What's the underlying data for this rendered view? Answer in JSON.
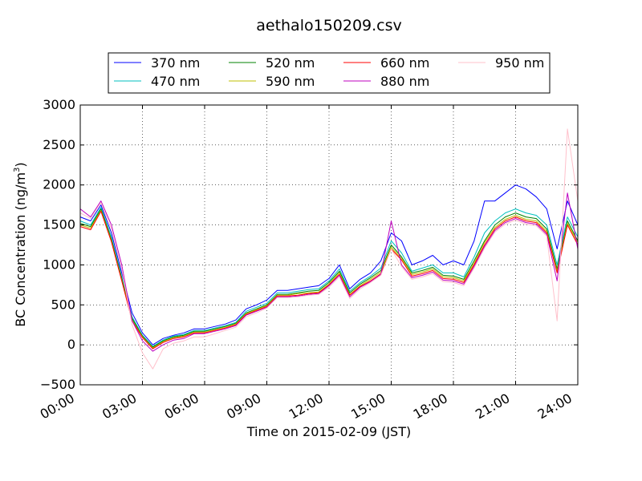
{
  "chart_data": {
    "type": "line",
    "title": "aethalo150209.csv",
    "xlabel": "Time on 2015-02-09 (JST)",
    "ylabel_main": "BC Concentration (ng/m",
    "ylabel_sup": "3",
    "ylabel_close": ")",
    "xlim": [
      0,
      24
    ],
    "ylim": [
      -500,
      3000
    ],
    "grid": true,
    "legend_placement": "top-center",
    "x_ticks": [
      {
        "value": 0,
        "label": "00:00"
      },
      {
        "value": 3,
        "label": "03:00"
      },
      {
        "value": 6,
        "label": "06:00"
      },
      {
        "value": 9,
        "label": "09:00"
      },
      {
        "value": 12,
        "label": "12:00"
      },
      {
        "value": 15,
        "label": "15:00"
      },
      {
        "value": 18,
        "label": "18:00"
      },
      {
        "value": 21,
        "label": "21:00"
      },
      {
        "value": 24,
        "label": "24:00"
      }
    ],
    "y_ticks": [
      {
        "value": -500,
        "label": "−500"
      },
      {
        "value": 0,
        "label": "0"
      },
      {
        "value": 500,
        "label": "500"
      },
      {
        "value": 1000,
        "label": "1000"
      },
      {
        "value": 1500,
        "label": "1500"
      },
      {
        "value": 2000,
        "label": "2000"
      },
      {
        "value": 2500,
        "label": "2500"
      },
      {
        "value": 3000,
        "label": "3000"
      }
    ],
    "x": [
      0,
      0.5,
      1,
      1.5,
      2,
      2.5,
      3,
      3.5,
      4,
      4.5,
      5,
      5.5,
      6,
      6.5,
      7,
      7.5,
      8,
      8.5,
      9,
      9.5,
      10,
      10.5,
      11,
      11.5,
      12,
      12.5,
      13,
      13.5,
      14,
      14.5,
      15,
      15.5,
      16,
      16.5,
      17,
      17.5,
      18,
      18.5,
      19,
      19.5,
      20,
      20.5,
      21,
      21.5,
      22,
      22.5,
      23,
      23.5,
      24
    ],
    "series": [
      {
        "name": "370 nm",
        "color": "#0000ff",
        "values": [
          1600,
          1550,
          1750,
          1400,
          900,
          400,
          150,
          0,
          80,
          120,
          150,
          200,
          200,
          230,
          260,
          310,
          450,
          500,
          560,
          680,
          680,
          700,
          720,
          740,
          830,
          1000,
          700,
          820,
          900,
          1050,
          1400,
          1300,
          1000,
          1050,
          1120,
          1000,
          1050,
          1000,
          1300,
          1800,
          1800,
          1900,
          2000,
          1950,
          1850,
          1700,
          1200,
          1800,
          1500
        ]
      },
      {
        "name": "470 nm",
        "color": "#00bfbf",
        "values": [
          1550,
          1500,
          1720,
          1350,
          850,
          350,
          120,
          -20,
          60,
          110,
          130,
          180,
          180,
          210,
          240,
          280,
          420,
          470,
          520,
          650,
          650,
          670,
          690,
          700,
          800,
          950,
          670,
          780,
          860,
          960,
          1300,
          1150,
          920,
          960,
          1000,
          900,
          900,
          850,
          1100,
          1400,
          1550,
          1650,
          1700,
          1650,
          1620,
          1500,
          1000,
          1600,
          1350
        ]
      },
      {
        "name": "520 nm",
        "color": "#008000",
        "values": [
          1520,
          1480,
          1700,
          1320,
          830,
          330,
          110,
          -30,
          50,
          100,
          120,
          170,
          170,
          200,
          230,
          270,
          400,
          450,
          500,
          630,
          630,
          650,
          670,
          680,
          780,
          920,
          650,
          760,
          840,
          930,
          1250,
          1100,
          900,
          930,
          970,
          870,
          860,
          820,
          1050,
          1300,
          1500,
          1600,
          1650,
          1600,
          1580,
          1450,
          950,
          1550,
          1300
        ]
      },
      {
        "name": "590 nm",
        "color": "#bfbf00",
        "values": [
          1500,
          1460,
          1680,
          1300,
          810,
          310,
          100,
          -40,
          40,
          90,
          110,
          160,
          160,
          190,
          220,
          260,
          390,
          440,
          490,
          620,
          620,
          640,
          650,
          660,
          760,
          900,
          630,
          740,
          820,
          910,
          1220,
          1080,
          880,
          910,
          950,
          850,
          840,
          800,
          1020,
          1280,
          1470,
          1570,
          1620,
          1570,
          1550,
          1420,
          920,
          1520,
          1280
        ]
      },
      {
        "name": "660 nm",
        "color": "#ff0000",
        "values": [
          1480,
          1440,
          1670,
          1290,
          800,
          300,
          90,
          -50,
          30,
          80,
          100,
          150,
          150,
          180,
          210,
          250,
          380,
          430,
          480,
          610,
          610,
          620,
          640,
          650,
          750,
          880,
          620,
          730,
          800,
          890,
          1200,
          1060,
          860,
          890,
          930,
          830,
          820,
          780,
          1000,
          1250,
          1450,
          1550,
          1600,
          1550,
          1530,
          1400,
          900,
          1500,
          1250
        ]
      },
      {
        "name": "880 nm",
        "color": "#bf00bf",
        "values": [
          1700,
          1600,
          1800,
          1500,
          1000,
          300,
          50,
          -80,
          0,
          60,
          80,
          140,
          140,
          170,
          200,
          240,
          370,
          420,
          470,
          600,
          600,
          610,
          630,
          640,
          740,
          870,
          600,
          720,
          790,
          880,
          1550,
          1000,
          840,
          870,
          910,
          810,
          800,
          760,
          980,
          1230,
          1430,
          1530,
          1580,
          1530,
          1510,
          1380,
          800,
          1900,
          1200
        ]
      },
      {
        "name": "950 nm",
        "color": "#ffc0cb",
        "values": [
          1650,
          1580,
          1780,
          1450,
          950,
          250,
          -100,
          -300,
          -50,
          20,
          50,
          100,
          100,
          140,
          180,
          220,
          350,
          400,
          460,
          590,
          590,
          600,
          620,
          630,
          720,
          850,
          580,
          700,
          780,
          870,
          1200,
          980,
          820,
          850,
          890,
          790,
          780,
          740,
          960,
          1210,
          1410,
          1510,
          1560,
          1510,
          1490,
          1360,
          300,
          2700,
          1800
        ]
      }
    ]
  }
}
